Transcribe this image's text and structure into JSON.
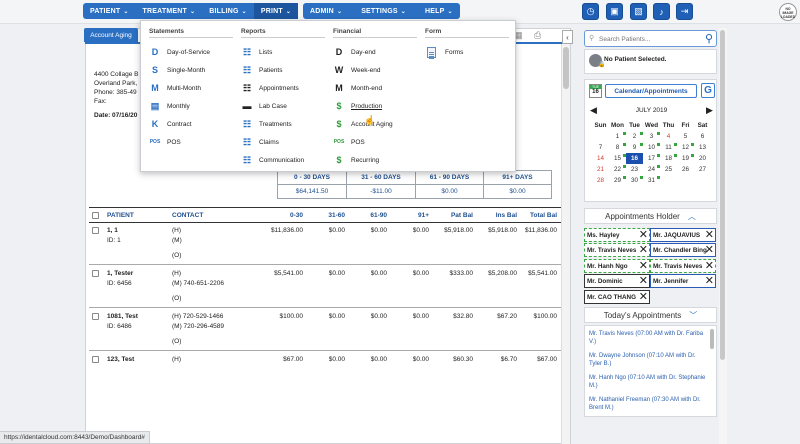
{
  "nav": {
    "left_items": [
      {
        "label": "PATIENT"
      },
      {
        "label": "TREATMENT"
      },
      {
        "label": "BILLING"
      },
      {
        "label": "PRINT"
      }
    ],
    "right_items": [
      {
        "label": "ADMIN"
      },
      {
        "label": "SETTINGS"
      },
      {
        "label": "HELP"
      }
    ],
    "chevron": "⌄",
    "toolbar_icons": [
      "clock-icon",
      "image-icon",
      "photo-icon",
      "bell-icon",
      "logout-icon"
    ],
    "badge_text": "NO IMAGE LOADED"
  },
  "tab": {
    "label": "Account Aging"
  },
  "address": {
    "line1": "4400 Collage B",
    "line2": "Overland Park,",
    "phone": "Phone: 385-49",
    "fax": "Fax:",
    "date": "Date: 07/16/20"
  },
  "print_menu": {
    "columns": [
      {
        "title": "Statements",
        "items": [
          {
            "label": "Day-of-Service",
            "glyph": "D"
          },
          {
            "label": "Single-Month",
            "glyph": "S"
          },
          {
            "label": "Multi-Month",
            "glyph": "M"
          },
          {
            "label": "Monthly",
            "glyph": "▤"
          },
          {
            "label": "Contract",
            "glyph": "K"
          },
          {
            "label": "POS",
            "glyph": "POS"
          }
        ]
      },
      {
        "title": "Reports",
        "items": [
          {
            "label": "Lists",
            "glyph": "☷"
          },
          {
            "label": "Patients",
            "glyph": "☷"
          },
          {
            "label": "Appointments",
            "glyph": "☷"
          },
          {
            "label": "Lab Case",
            "glyph": "▬"
          },
          {
            "label": "Treatments",
            "glyph": "☷"
          },
          {
            "label": "Claims",
            "glyph": "☷"
          },
          {
            "label": "Communication",
            "glyph": "☷"
          }
        ]
      },
      {
        "title": "Financial",
        "items": [
          {
            "label": "Day-end",
            "glyph": "D"
          },
          {
            "label": "Week-end",
            "glyph": "W"
          },
          {
            "label": "Month-end",
            "glyph": "M"
          },
          {
            "label": "Production",
            "glyph": "$"
          },
          {
            "label": "Account Aging",
            "glyph": "$"
          },
          {
            "label": "POS",
            "glyph": "POS"
          },
          {
            "label": "Recurring",
            "glyph": "$"
          }
        ]
      },
      {
        "title": "Form",
        "items": [
          {
            "label": "Forms",
            "glyph": "doc"
          }
        ]
      }
    ]
  },
  "aging_summary": {
    "headers": [
      "0 - 30 DAYS",
      "31 - 60 DAYS",
      "61 - 90 DAYS",
      "91+ DAYS"
    ],
    "values": [
      "$64,141.50",
      "-$11.00",
      "$0.00",
      "$0.00"
    ]
  },
  "grid": {
    "headers": [
      "PATIENT",
      "CONTACT",
      "0-30",
      "31-60",
      "61-90",
      "91+",
      "Pat Bal",
      "Ins Bal",
      "Total Bal"
    ],
    "rows": [
      {
        "name": "1, 1",
        "id": "ID: 1",
        "contacts": [
          "(H)",
          "(M)",
          "(O)"
        ],
        "v030": "$11,836.00",
        "v3160": "$0.00",
        "v6190": "$0.00",
        "v91": "$0.00",
        "pat": "$5,918.00",
        "ins": "$5,918.00",
        "total": "$11,836.00"
      },
      {
        "name": "1, Tester",
        "id": "ID: 6456",
        "contacts": [
          "(H)",
          "(M) 740-651-2206",
          "(O)"
        ],
        "v030": "$5,541.00",
        "v3160": "$0.00",
        "v6190": "$0.00",
        "v91": "$0.00",
        "pat": "$333.00",
        "ins": "$5,208.00",
        "total": "$5,541.00"
      },
      {
        "name": "1081, Test",
        "id": "ID: 6486",
        "contacts": [
          "(H) 720-529-1466",
          "(M) 720-296-4589",
          "(O)"
        ],
        "v030": "$100.00",
        "v3160": "$0.00",
        "v6190": "$0.00",
        "v91": "$0.00",
        "pat": "$32.80",
        "ins": "$67.20",
        "total": "$100.00"
      },
      {
        "name": "123, Test",
        "id": "",
        "contacts": [
          "(H)"
        ],
        "v030": "$67.00",
        "v3160": "$0.00",
        "v6190": "$0.00",
        "v91": "$0.00",
        "pat": "$60.30",
        "ins": "$6.70",
        "total": "$67.00"
      }
    ]
  },
  "right_panel": {
    "search_placeholder": "Search Patients...",
    "no_patient": "No Patient Selected.",
    "cal_icon_day": "TUE",
    "cal_icon_date": "16",
    "cal_button": "Calendar/Appointments",
    "g_button": "G",
    "month": "JULY 2019",
    "weekdays": [
      "Sun",
      "Mon",
      "Tue",
      "Wed",
      "Thu",
      "Fri",
      "Sat"
    ],
    "weeks": [
      [
        "",
        "1",
        "2",
        "3",
        "4",
        "5",
        "6"
      ],
      [
        "7",
        "8",
        "9",
        "10",
        "11",
        "12",
        "13"
      ],
      [
        "14",
        "15",
        "16",
        "17",
        "18",
        "19",
        "20"
      ],
      [
        "21",
        "22",
        "23",
        "24",
        "25",
        "26",
        "27"
      ],
      [
        "28",
        "29",
        "30",
        "31",
        "",
        "",
        ""
      ]
    ],
    "holder_title": "Appointments Holder",
    "holder_chips": [
      {
        "label": "Ms. Hayley",
        "style": "dash"
      },
      {
        "label": "Mr. JAQUAVIUS",
        "style": "blue"
      },
      {
        "label": "Mr. Travis Neves",
        "style": "dash"
      },
      {
        "label": "Mr. Chandler Bing",
        "style": "blue"
      },
      {
        "label": "Mr. Hanh Ngo",
        "style": "dash"
      },
      {
        "label": "Mr. Travis Neves",
        "style": "dash"
      },
      {
        "label": "Mr. Dominic",
        "style": "plain"
      },
      {
        "label": "Mr. Jennifer",
        "style": "blue"
      },
      {
        "label": "Mr. CAO THANG",
        "style": "plain"
      }
    ],
    "today_title": "Today's Appointments",
    "today_items": [
      "Mr. Travis Neves (07:00 AM with Dr. Fariba V.)",
      "Mr. Dwayne Johnson (07:10 AM with Dr. Tyler B.)",
      "Mr. Hanh Ngo (07:10 AM with Dr. Stephanie M.)",
      "Mr. Nathaniel Freeman (07:30 AM with Dr. Brent M.)"
    ]
  },
  "status_bar": "https://identalcloud.com:8443/Demo/Dashboard#"
}
